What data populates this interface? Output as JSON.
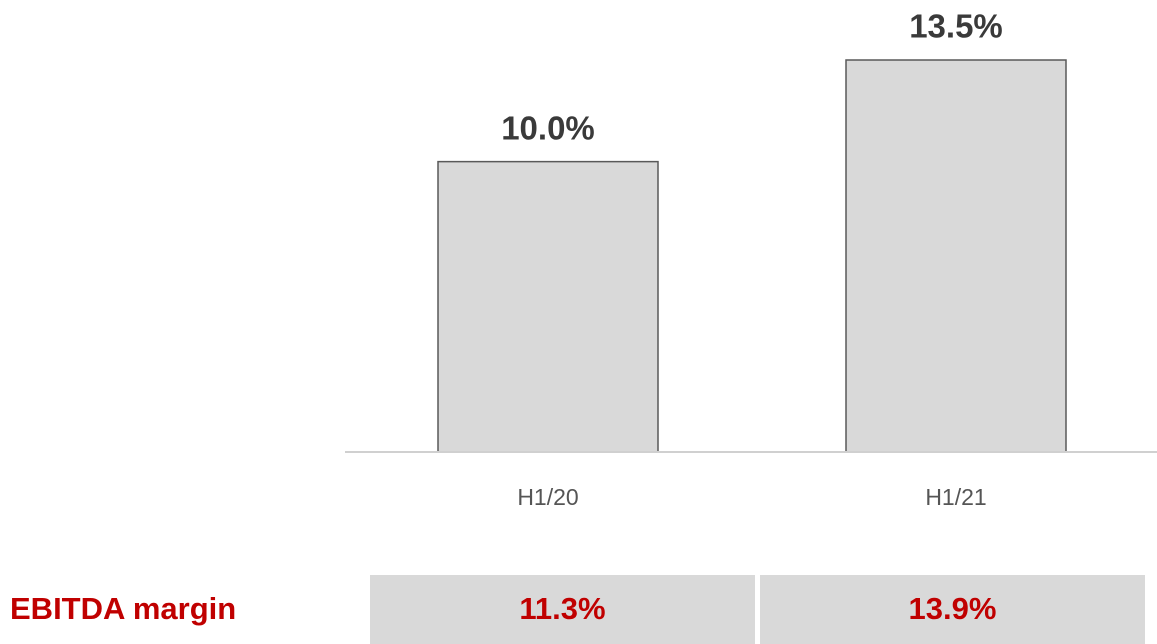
{
  "chart_data": {
    "type": "bar",
    "categories": [
      "H1/20",
      "H1/21"
    ],
    "values": [
      10.0,
      13.5
    ],
    "value_labels": [
      "10.0%",
      "13.5%"
    ],
    "color": "#d9d9d9"
  },
  "table": {
    "label": "EBITDA margin",
    "values": [
      "11.3%",
      "13.9%"
    ]
  }
}
